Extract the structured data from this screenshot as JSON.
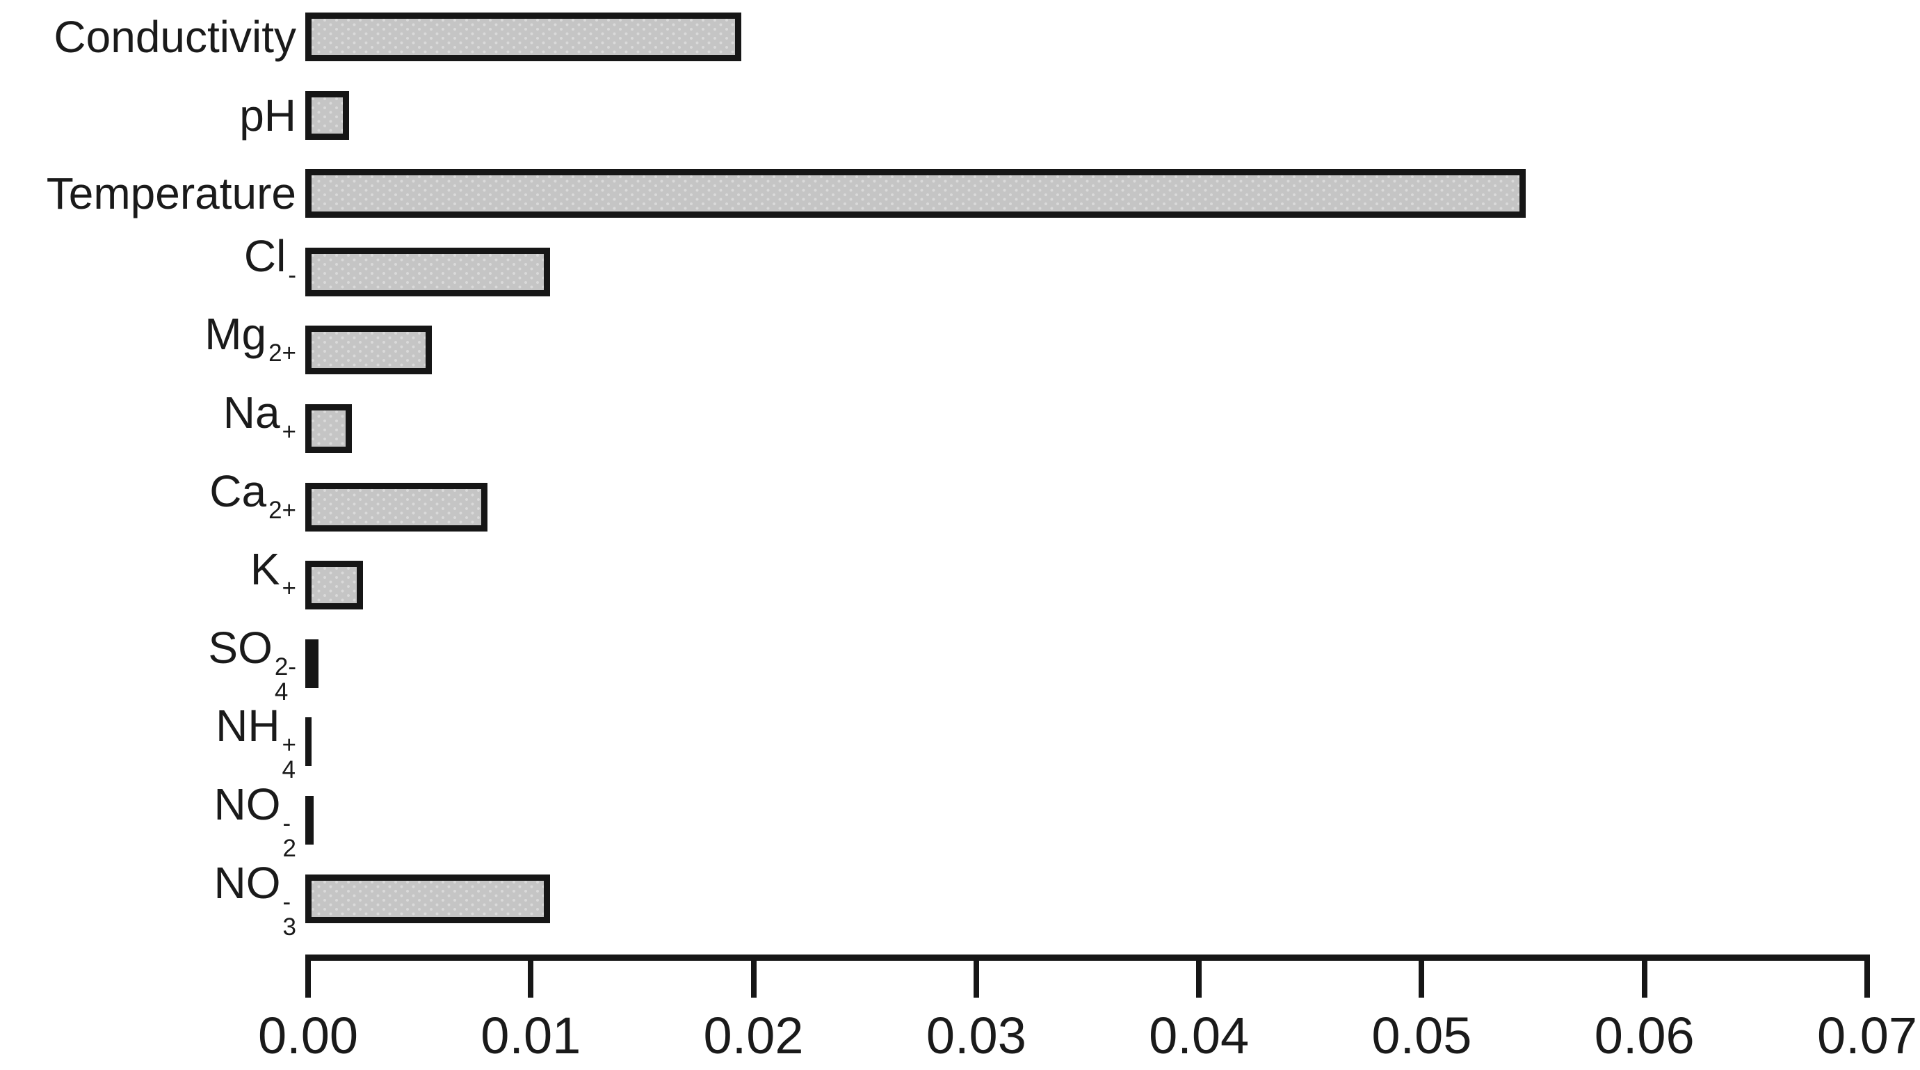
{
  "chart_data": {
    "type": "bar",
    "orientation": "horizontal",
    "title": "",
    "xlabel": "",
    "ylabel": "",
    "grid": false,
    "legend": "none",
    "xlim": [
      0,
      0.07
    ],
    "x_ticks": [
      0,
      0.01,
      0.02,
      0.03,
      0.04,
      0.05,
      0.06,
      0.07
    ],
    "x_tick_labels": [
      "0.00",
      "0.01",
      "0.02",
      "0.03",
      "0.04",
      "0.05",
      "0.06",
      "0.07"
    ],
    "categories": [
      "Conductivity",
      "pH",
      "Temperature",
      "Cl-",
      "Mg2+",
      "Na+",
      "Ca2+",
      "K+",
      "SO4 2-",
      "NH4+",
      "NO2-",
      "NO3-"
    ],
    "categories_rich": [
      {
        "base": "Conductivity",
        "sup": "",
        "sub": ""
      },
      {
        "base": "pH",
        "sup": "",
        "sub": ""
      },
      {
        "base": "Temperature",
        "sup": "",
        "sub": ""
      },
      {
        "base": "Cl",
        "sup": "-",
        "sub": ""
      },
      {
        "base": "Mg",
        "sup": "2+",
        "sub": ""
      },
      {
        "base": "Na",
        "sup": "+",
        "sub": ""
      },
      {
        "base": "Ca",
        "sup": "2+",
        "sub": ""
      },
      {
        "base": "K",
        "sup": "+",
        "sub": ""
      },
      {
        "base": "SO",
        "sup": "2-",
        "sub": "4"
      },
      {
        "base": "NH",
        "sup": "+",
        "sub": "4"
      },
      {
        "base": "NO",
        "sup": "-",
        "sub": "2"
      },
      {
        "base": "NO",
        "sup": "-",
        "sub": "3"
      }
    ],
    "values": [
      0.0193,
      0.0017,
      0.0545,
      0.0107,
      0.0054,
      0.0018,
      0.0079,
      0.0023,
      0.0004,
      0.0001,
      0.0002,
      0.0107
    ],
    "colors": {
      "background": "#ffffff",
      "text": "#1a1a1a",
      "axis": "#161616",
      "bar_fill": "#c5c5c5",
      "bar_dot": "#dadada",
      "bar_border": "#161616"
    }
  }
}
